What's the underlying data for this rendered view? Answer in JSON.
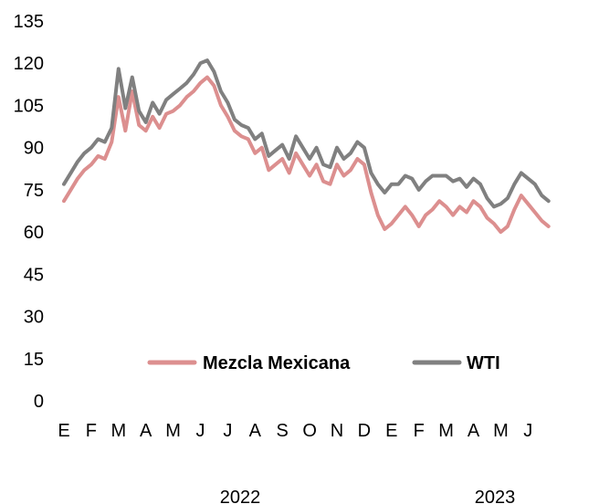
{
  "chart_data": {
    "type": "line",
    "title": "",
    "xlabel": "",
    "ylabel": "",
    "ylim": [
      0,
      135
    ],
    "yticks": [
      0,
      15,
      30,
      45,
      60,
      75,
      90,
      105,
      120,
      135
    ],
    "x_month_labels": [
      "E",
      "F",
      "M",
      "A",
      "M",
      "J",
      "J",
      "A",
      "S",
      "O",
      "N",
      "D",
      "E",
      "F",
      "M",
      "A",
      "M",
      "J"
    ],
    "x_year_labels": [
      "2022",
      "2023"
    ],
    "x_period": "January 2022 – June 2023, weekly (approx.)",
    "grid": false,
    "legend_position": "lower-middle",
    "colors": {
      "Mezcla Mexicana": "#dc8f8f",
      "WTI": "#808080"
    },
    "series": [
      {
        "name": "Mezcla Mexicana",
        "x": [
          0.0,
          0.25,
          0.5,
          0.75,
          1.0,
          1.25,
          1.5,
          1.75,
          2.0,
          2.25,
          2.5,
          2.75,
          3.0,
          3.25,
          3.5,
          3.75,
          4.0,
          4.25,
          4.5,
          4.75,
          5.0,
          5.25,
          5.5,
          5.75,
          6.0,
          6.25,
          6.5,
          6.75,
          7.0,
          7.25,
          7.5,
          7.75,
          8.0,
          8.25,
          8.5,
          8.75,
          9.0,
          9.25,
          9.5,
          9.75,
          10.0,
          10.25,
          10.5,
          10.75,
          11.0,
          11.25,
          11.5,
          11.75,
          12.0,
          12.25,
          12.5,
          12.75,
          13.0,
          13.25,
          13.5,
          13.75,
          14.0,
          14.25,
          14.5,
          14.75,
          15.0,
          15.25,
          15.5,
          15.75,
          16.0,
          16.25,
          16.5,
          16.75,
          17.0,
          17.25,
          17.5,
          17.75
        ],
        "values": [
          71,
          75,
          79,
          82,
          84,
          87,
          86,
          92,
          108,
          96,
          110,
          98,
          96,
          101,
          97,
          102,
          103,
          105,
          108,
          110,
          113,
          115,
          112,
          105,
          101,
          96,
          94,
          93,
          88,
          90,
          82,
          84,
          86,
          81,
          88,
          84,
          80,
          84,
          78,
          77,
          84,
          80,
          82,
          86,
          84,
          74,
          66,
          61,
          63,
          66,
          69,
          66,
          62,
          66,
          68,
          71,
          69,
          66,
          69,
          67,
          71,
          69,
          65,
          63,
          60,
          62,
          68,
          73,
          70,
          67,
          64,
          62
        ]
      },
      {
        "name": "WTI",
        "x": [
          0.0,
          0.25,
          0.5,
          0.75,
          1.0,
          1.25,
          1.5,
          1.75,
          2.0,
          2.25,
          2.5,
          2.75,
          3.0,
          3.25,
          3.5,
          3.75,
          4.0,
          4.25,
          4.5,
          4.75,
          5.0,
          5.25,
          5.5,
          5.75,
          6.0,
          6.25,
          6.5,
          6.75,
          7.0,
          7.25,
          7.5,
          7.75,
          8.0,
          8.25,
          8.5,
          8.75,
          9.0,
          9.25,
          9.5,
          9.75,
          10.0,
          10.25,
          10.5,
          10.75,
          11.0,
          11.25,
          11.5,
          11.75,
          12.0,
          12.25,
          12.5,
          12.75,
          13.0,
          13.25,
          13.5,
          13.75,
          14.0,
          14.25,
          14.5,
          14.75,
          15.0,
          15.25,
          15.5,
          15.75,
          16.0,
          16.25,
          16.5,
          16.75,
          17.0,
          17.25,
          17.5,
          17.75
        ],
        "values": [
          77,
          81,
          85,
          88,
          90,
          93,
          92,
          97,
          118,
          104,
          115,
          103,
          99,
          106,
          102,
          107,
          109,
          111,
          113,
          116,
          120,
          121,
          117,
          110,
          106,
          100,
          98,
          97,
          93,
          95,
          87,
          89,
          91,
          86,
          94,
          90,
          86,
          90,
          84,
          83,
          90,
          86,
          88,
          92,
          90,
          81,
          77,
          74,
          77,
          77,
          80,
          79,
          75,
          78,
          80,
          80,
          80,
          78,
          79,
          76,
          79,
          77,
          72,
          69,
          70,
          72,
          77,
          81,
          79,
          77,
          73,
          71
        ]
      }
    ]
  }
}
